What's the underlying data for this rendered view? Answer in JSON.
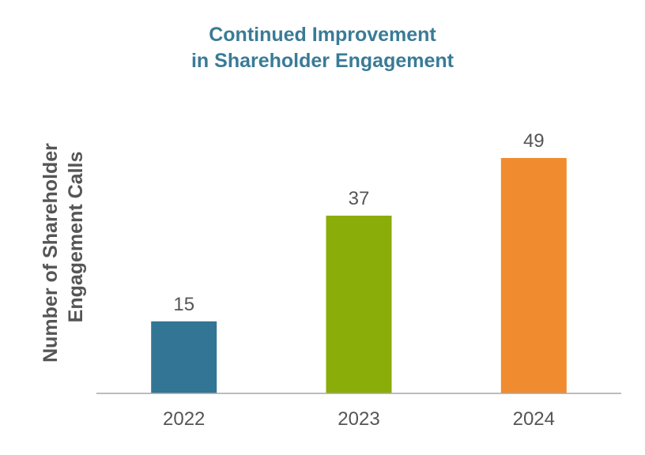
{
  "chart_data": {
    "type": "bar",
    "title": [
      "Continued Improvement",
      "in Shareholder Engagement"
    ],
    "ylabel": [
      "Number of Shareholder",
      "Engagement Calls"
    ],
    "xlabel": "",
    "categories": [
      "2022",
      "2023",
      "2024"
    ],
    "values": [
      15,
      37,
      49
    ],
    "colors": [
      "#337594",
      "#8aad0a",
      "#f08c2f"
    ],
    "title_color": "#3a7b96",
    "axis_color": "#a6a6a6",
    "ylim": [
      0,
      49
    ],
    "grid": false,
    "legend": "none"
  }
}
